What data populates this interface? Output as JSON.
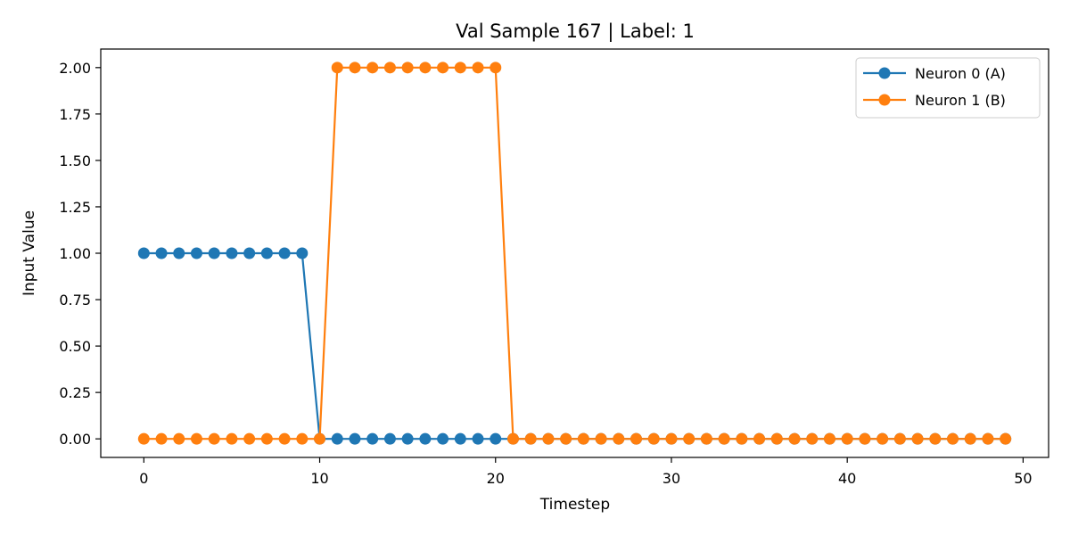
{
  "chart_data": {
    "type": "line",
    "title": "Val Sample 167 | Label: 1",
    "xlabel": "Timestep",
    "ylabel": "Input Value",
    "xlim": [
      -2.45,
      51.45
    ],
    "ylim": [
      -0.1,
      2.1
    ],
    "xticks": [
      0,
      10,
      20,
      30,
      40,
      50
    ],
    "yticks": [
      0.0,
      0.25,
      0.5,
      0.75,
      1.0,
      1.25,
      1.5,
      1.75,
      2.0
    ],
    "ytick_labels": [
      "0.00",
      "0.25",
      "0.50",
      "0.75",
      "1.00",
      "1.25",
      "1.50",
      "1.75",
      "2.00"
    ],
    "grid": false,
    "legend_position": "top-right",
    "x": [
      0,
      1,
      2,
      3,
      4,
      5,
      6,
      7,
      8,
      9,
      10,
      11,
      12,
      13,
      14,
      15,
      16,
      17,
      18,
      19,
      20,
      21,
      22,
      23,
      24,
      25,
      26,
      27,
      28,
      29,
      30,
      31,
      32,
      33,
      34,
      35,
      36,
      37,
      38,
      39,
      40,
      41,
      42,
      43,
      44,
      45,
      46,
      47,
      48,
      49
    ],
    "series": [
      {
        "name": "Neuron 0 (A)",
        "color": "#1f77b4",
        "marker": "circle",
        "values": [
          1,
          1,
          1,
          1,
          1,
          1,
          1,
          1,
          1,
          1,
          0,
          0,
          0,
          0,
          0,
          0,
          0,
          0,
          0,
          0,
          0,
          0,
          0,
          0,
          0,
          0,
          0,
          0,
          0,
          0,
          0,
          0,
          0,
          0,
          0,
          0,
          0,
          0,
          0,
          0,
          0,
          0,
          0,
          0,
          0,
          0,
          0,
          0,
          0,
          0
        ]
      },
      {
        "name": "Neuron 1 (B)",
        "color": "#ff7f0e",
        "marker": "circle",
        "values": [
          0,
          0,
          0,
          0,
          0,
          0,
          0,
          0,
          0,
          0,
          0,
          2,
          2,
          2,
          2,
          2,
          2,
          2,
          2,
          2,
          2,
          0,
          0,
          0,
          0,
          0,
          0,
          0,
          0,
          0,
          0,
          0,
          0,
          0,
          0,
          0,
          0,
          0,
          0,
          0,
          0,
          0,
          0,
          0,
          0,
          0,
          0,
          0,
          0,
          0
        ]
      }
    ]
  }
}
